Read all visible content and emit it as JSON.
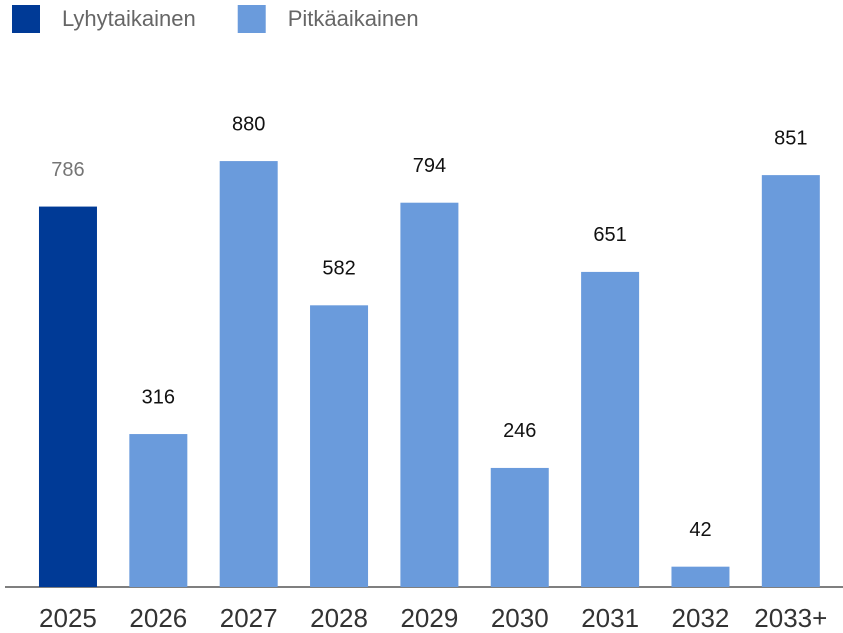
{
  "chart_data": {
    "type": "bar",
    "categories": [
      "2025",
      "2026",
      "2027",
      "2028",
      "2029",
      "2030",
      "2031",
      "2032",
      "2033+"
    ],
    "series": [
      {
        "name": "Lyhytaikainen",
        "color": "#003a96",
        "label_color": "#757575",
        "values": [
          786,
          null,
          null,
          null,
          null,
          null,
          null,
          null,
          null
        ]
      },
      {
        "name": "Pitkäaikainen",
        "color": "#6a9bdc",
        "label_color": "#111111",
        "values": [
          null,
          316,
          880,
          582,
          794,
          246,
          651,
          42,
          851
        ]
      }
    ],
    "ylim": [
      0,
      1000
    ],
    "legend": "top-left"
  }
}
